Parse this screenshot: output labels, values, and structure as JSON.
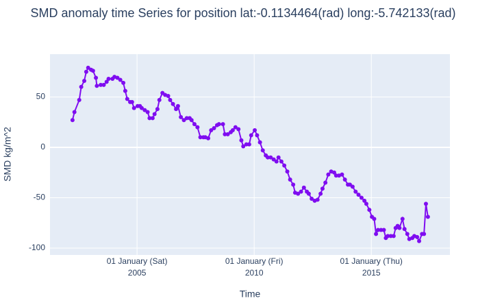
{
  "chart_data": {
    "type": "line",
    "title": "SMD anomaly time Series for position lat:-0.1134464(rad) long:-5.742133(rad)",
    "x_label": "Time",
    "y_label": "SMD kg/m^2",
    "color": "#7f0df0",
    "grid": true,
    "xlim": [
      "2001-04-15",
      "2018-05-10"
    ],
    "xticks": [
      {
        "value": "2005-01-01",
        "label": [
          "01 January (Sat)",
          "2005"
        ]
      },
      {
        "value": "2010-01-01",
        "label": [
          "01 January (Fri)",
          "2010"
        ]
      },
      {
        "value": "2015-01-01",
        "label": [
          "01 January (Thu)",
          "2015"
        ]
      }
    ],
    "ylim": [
      -106.8,
      92.5
    ],
    "yticks": [
      -100,
      -50,
      0,
      50
    ],
    "x": [
      "2002-04-01",
      "2002-05-01",
      "2002-07-15",
      "2002-08-15",
      "2002-10-01",
      "2002-11-01",
      "2002-12-01",
      "2003-01-15",
      "2003-02-15",
      "2003-04-01",
      "2003-04-15",
      "2003-06-15",
      "2003-08-01",
      "2003-09-15",
      "2003-10-15",
      "2003-12-15",
      "2004-01-15",
      "2004-03-01",
      "2004-04-15",
      "2004-06-01",
      "2004-07-01",
      "2004-08-01",
      "2004-09-15",
      "2004-10-15",
      "2004-11-15",
      "2005-01-10",
      "2005-02-15",
      "2005-03-15",
      "2005-05-01",
      "2005-06-15",
      "2005-07-15",
      "2005-09-01",
      "2005-10-01",
      "2005-11-15",
      "2005-12-15",
      "2006-02-01",
      "2006-03-15",
      "2006-05-01",
      "2006-06-01",
      "2006-07-15",
      "2006-09-01",
      "2006-10-01",
      "2006-11-15",
      "2007-01-01",
      "2007-02-15",
      "2007-04-01",
      "2007-05-01",
      "2007-06-15",
      "2007-08-01",
      "2007-09-15",
      "2007-11-01",
      "2007-12-01",
      "2008-01-15",
      "2008-03-01",
      "2008-04-15",
      "2008-06-01",
      "2008-07-01",
      "2008-09-01",
      "2008-10-01",
      "2008-11-15",
      "2009-01-01",
      "2009-02-01",
      "2009-03-15",
      "2009-05-01",
      "2009-06-15",
      "2009-07-15",
      "2009-09-01",
      "2009-10-15",
      "2009-11-15",
      "2010-01-10",
      "2010-02-15",
      "2010-04-01",
      "2010-05-15",
      "2010-07-01",
      "2010-08-01",
      "2010-09-15",
      "2010-11-01",
      "2010-12-15",
      "2011-01-15",
      "2011-03-01",
      "2011-04-15",
      "2011-06-01",
      "2011-07-15",
      "2011-09-01",
      "2011-10-01",
      "2011-11-15",
      "2012-01-01",
      "2012-02-15",
      "2012-04-01",
      "2012-05-01",
      "2012-06-15",
      "2012-08-01",
      "2012-09-15",
      "2012-11-01",
      "2012-12-01",
      "2013-01-15",
      "2013-03-01",
      "2013-04-15",
      "2013-06-01",
      "2013-07-01",
      "2013-08-15",
      "2013-10-01",
      "2013-11-15",
      "2014-01-01",
      "2014-02-01",
      "2014-03-15",
      "2014-05-01",
      "2014-06-15",
      "2014-08-01",
      "2014-09-15",
      "2014-10-15",
      "2014-12-01",
      "2015-01-10",
      "2015-02-15",
      "2015-03-15",
      "2015-04-15",
      "2015-06-01",
      "2015-07-15",
      "2015-08-15",
      "2015-09-15",
      "2015-11-01",
      "2015-12-15",
      "2016-01-15",
      "2016-02-15",
      "2016-03-15",
      "2016-05-01",
      "2016-06-01",
      "2016-07-15",
      "2016-08-15",
      "2016-10-01",
      "2016-11-01",
      "2016-12-15",
      "2017-01-15",
      "2017-03-01",
      "2017-04-01",
      "2017-05-01",
      "2017-06-01"
    ],
    "values": [
      27,
      35,
      47,
      60,
      66,
      75,
      79,
      77,
      76,
      69,
      61,
      62,
      62,
      65,
      68,
      68,
      70,
      69,
      67,
      64,
      56,
      48,
      45,
      45,
      39,
      41,
      41,
      39,
      37,
      35,
      29,
      29,
      33,
      38,
      47,
      54,
      52,
      51,
      47,
      43,
      38,
      41,
      30,
      27,
      29,
      29,
      27,
      23,
      20,
      10,
      10,
      10,
      9,
      17,
      19,
      22,
      23,
      23,
      13,
      13,
      15,
      17,
      20,
      18,
      7,
      1,
      3,
      3,
      12,
      17,
      12,
      5,
      -3,
      -8,
      -10,
      -10,
      -12,
      -14,
      -10,
      -14,
      -18,
      -24,
      -32,
      -37,
      -45,
      -46,
      -44,
      -40,
      -44,
      -46,
      -51,
      -53,
      -52,
      -46,
      -41,
      -35,
      -27,
      -24,
      -25,
      -28,
      -28,
      -27,
      -32,
      -37,
      -37,
      -39,
      -44,
      -47,
      -50,
      -53,
      -56,
      -62,
      -69,
      -71,
      -86,
      -82,
      -82,
      -82,
      -90,
      -88,
      -88,
      -88,
      -80,
      -78,
      -80,
      -71,
      -81,
      -86,
      -91,
      -90,
      -88,
      -89,
      -93,
      -86,
      -86,
      -56,
      -69
    ]
  }
}
